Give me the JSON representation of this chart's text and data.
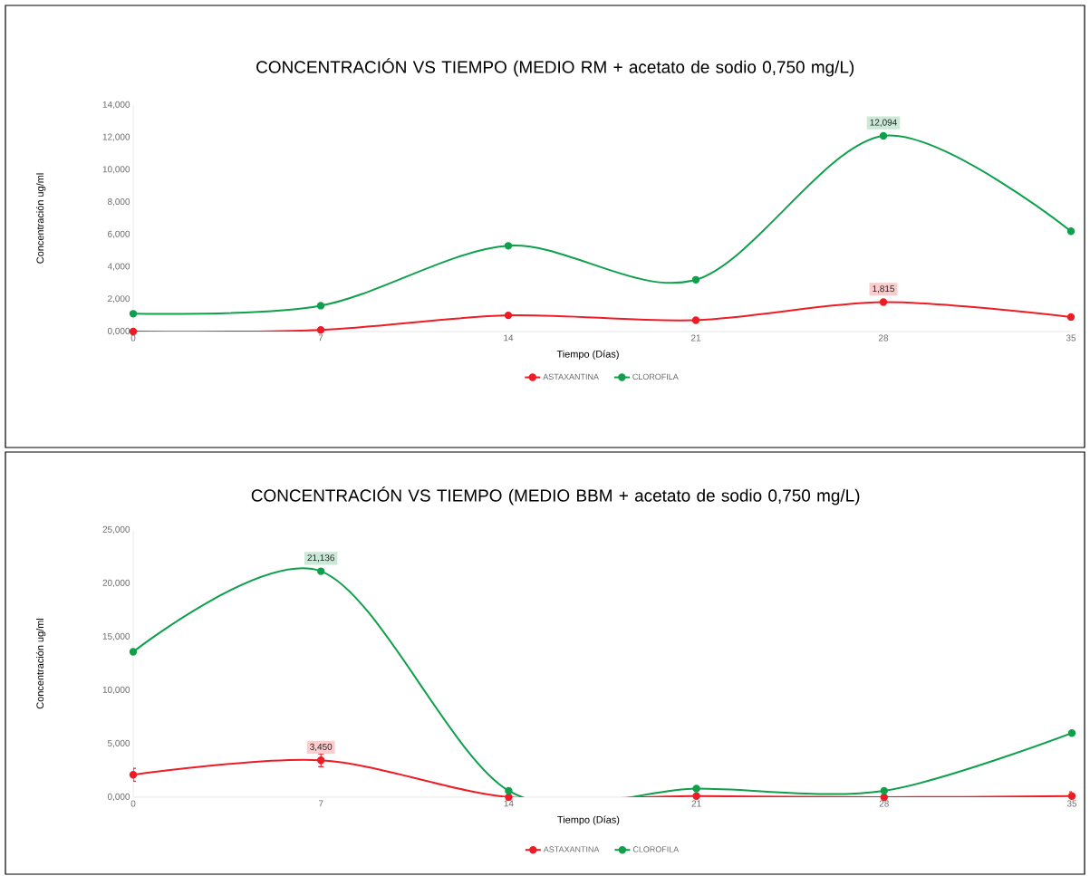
{
  "chart_data": [
    {
      "type": "line",
      "title": "CONCENTRACIÓN VS TIEMPO (MEDIO RM + acetato de sodio 0,750 mg/L)",
      "xlabel": "Tiempo (Días)",
      "ylabel": "Concentración ug/ml",
      "x": [
        0,
        7,
        14,
        21,
        28,
        35
      ],
      "series": [
        {
          "name": "ASTAXANTINA",
          "color": "#ee1c25",
          "values": [
            0.0,
            0.1,
            1.0,
            0.7,
            1.815,
            0.9
          ],
          "value_labels": [
            null,
            null,
            null,
            null,
            "1,815",
            null
          ]
        },
        {
          "name": "CLOROFILA",
          "color": "#0ea04b",
          "values": [
            1.1,
            1.6,
            5.3,
            3.2,
            12.094,
            6.2
          ],
          "value_labels": [
            null,
            null,
            null,
            null,
            "12,094",
            null
          ]
        }
      ],
      "xlim": [
        0,
        35
      ],
      "xticks": [
        0,
        7,
        14,
        21,
        28,
        35
      ],
      "ylim": [
        0,
        14
      ],
      "yticks": [
        {
          "value": 0,
          "label": "0,000"
        },
        {
          "value": 2,
          "label": "2,000"
        },
        {
          "value": 4,
          "label": "4,000"
        },
        {
          "value": 6,
          "label": "6,000"
        },
        {
          "value": 8,
          "label": "8,000"
        },
        {
          "value": 10,
          "label": "10,000"
        },
        {
          "value": 12,
          "label": "12,000"
        },
        {
          "value": 14,
          "label": "14,000"
        }
      ],
      "legend": "bottom",
      "marker": "circle"
    },
    {
      "type": "line",
      "title": "CONCENTRACIÓN VS TIEMPO (MEDIO BBM + acetato de sodio 0,750 mg/L)",
      "xlabel": "Tiempo (Días)",
      "ylabel": "Concentración ug/ml",
      "x": [
        0,
        7,
        14,
        21,
        28,
        35
      ],
      "series": [
        {
          "name": "ASTAXANTINA",
          "color": "#ee1c25",
          "values": [
            2.1,
            3.45,
            0.0,
            0.1,
            0.0,
            0.1
          ],
          "value_labels": [
            null,
            "3,450",
            null,
            null,
            null,
            null
          ],
          "errors": [
            0.6,
            0.6,
            null,
            null,
            null,
            0.4
          ]
        },
        {
          "name": "CLOROFILA",
          "color": "#0ea04b",
          "values": [
            13.6,
            21.136,
            0.6,
            0.8,
            0.6,
            6.0
          ],
          "value_labels": [
            null,
            "21,136",
            null,
            null,
            null,
            null
          ]
        }
      ],
      "xlim": [
        0,
        35
      ],
      "xticks": [
        0,
        7,
        14,
        21,
        28,
        35
      ],
      "ylim": [
        0,
        25
      ],
      "yticks": [
        {
          "value": 0,
          "label": "0,000"
        },
        {
          "value": 5,
          "label": "5,000"
        },
        {
          "value": 10,
          "label": "10,000"
        },
        {
          "value": 15,
          "label": "15,000"
        },
        {
          "value": 20,
          "label": "20,000"
        },
        {
          "value": 25,
          "label": "25,000"
        }
      ],
      "legend": "bottom",
      "marker": "circle"
    }
  ]
}
